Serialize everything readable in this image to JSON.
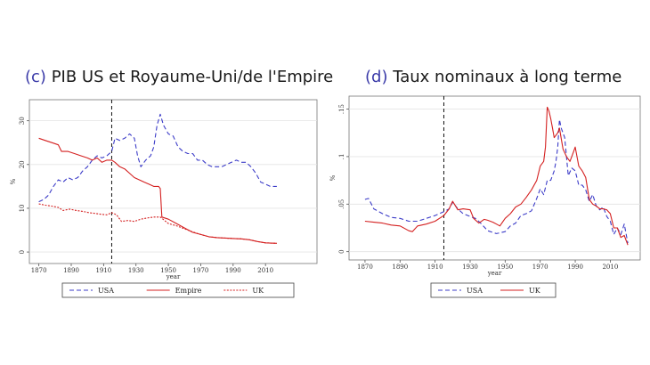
{
  "chart_data": [
    {
      "type": "line",
      "panel_letter": "(c)",
      "title": "PIB US et Royaume-Uni/de l'Empire",
      "xlabel": "year",
      "ylabel": "%",
      "xlim": [
        1868,
        2022
      ],
      "ylim": [
        -1,
        34
      ],
      "xticks": [
        1870,
        1890,
        1910,
        1930,
        1950,
        1970,
        1990,
        2010
      ],
      "yticks": [
        0,
        10,
        20,
        30
      ],
      "ytick_labels": [
        "0",
        "10",
        "20",
        "30"
      ],
      "vline_x": 1915,
      "grid": "horizontal",
      "legend_position": "bottom",
      "series": [
        {
          "name": "USA",
          "color": "#3c3cc8",
          "dash": "dashed",
          "points": [
            [
              1870,
              11.5
            ],
            [
              1873,
              12
            ],
            [
              1876,
              13
            ],
            [
              1879,
              15
            ],
            [
              1882,
              16.5
            ],
            [
              1885,
              16
            ],
            [
              1888,
              17
            ],
            [
              1891,
              16.5
            ],
            [
              1894,
              17
            ],
            [
              1897,
              18.5
            ],
            [
              1900,
              19.5
            ],
            [
              1903,
              21
            ],
            [
              1906,
              22
            ],
            [
              1909,
              21.5
            ],
            [
              1912,
              22
            ],
            [
              1915,
              23
            ],
            [
              1917,
              26
            ],
            [
              1920,
              25.5
            ],
            [
              1923,
              26
            ],
            [
              1926,
              27
            ],
            [
              1929,
              26
            ],
            [
              1931,
              22
            ],
            [
              1933,
              19.5
            ],
            [
              1936,
              21
            ],
            [
              1939,
              22
            ],
            [
              1941,
              24
            ],
            [
              1943,
              29
            ],
            [
              1945,
              31.5
            ],
            [
              1947,
              29
            ],
            [
              1950,
              27
            ],
            [
              1953,
              26.5
            ],
            [
              1956,
              24
            ],
            [
              1959,
              23
            ],
            [
              1962,
              22.5
            ],
            [
              1965,
              22.5
            ],
            [
              1968,
              21
            ],
            [
              1971,
              21
            ],
            [
              1974,
              20
            ],
            [
              1977,
              19.5
            ],
            [
              1980,
              19.5
            ],
            [
              1983,
              19.5
            ],
            [
              1986,
              20
            ],
            [
              1989,
              20.5
            ],
            [
              1992,
              21
            ],
            [
              1995,
              20.5
            ],
            [
              1998,
              20.5
            ],
            [
              2001,
              19.5
            ],
            [
              2004,
              18
            ],
            [
              2007,
              16
            ],
            [
              2010,
              15.5
            ],
            [
              2013,
              15
            ],
            [
              2017,
              15
            ]
          ]
        },
        {
          "name": "Empire",
          "color": "#d42020",
          "dash": "solid",
          "points": [
            [
              1870,
              26
            ],
            [
              1874,
              25.5
            ],
            [
              1878,
              25
            ],
            [
              1882,
              24.5
            ],
            [
              1884,
              23
            ],
            [
              1888,
              23
            ],
            [
              1892,
              22.5
            ],
            [
              1896,
              22
            ],
            [
              1900,
              21.5
            ],
            [
              1903,
              21
            ],
            [
              1906,
              21.5
            ],
            [
              1909,
              20.5
            ],
            [
              1912,
              21
            ],
            [
              1915,
              21
            ],
            [
              1917,
              20.5
            ],
            [
              1920,
              19.5
            ],
            [
              1923,
              19
            ],
            [
              1926,
              18
            ],
            [
              1929,
              17
            ],
            [
              1932,
              16.5
            ],
            [
              1935,
              16
            ],
            [
              1938,
              15.5
            ],
            [
              1941,
              15
            ],
            [
              1944,
              15
            ],
            [
              1945,
              14.5
            ],
            [
              1946,
              8
            ],
            [
              1950,
              7.5
            ],
            [
              1955,
              6.5
            ],
            [
              1960,
              5.5
            ],
            [
              1965,
              4.5
            ],
            [
              1970,
              4
            ],
            [
              1975,
              3.5
            ],
            [
              1980,
              3.3
            ],
            [
              1985,
              3.2
            ],
            [
              1990,
              3.1
            ],
            [
              1995,
              3
            ],
            [
              2000,
              2.8
            ],
            [
              2005,
              2.4
            ],
            [
              2010,
              2.1
            ],
            [
              2017,
              2
            ]
          ]
        },
        {
          "name": "UK",
          "color": "#d42020",
          "dash": "dotted",
          "points": [
            [
              1870,
              11
            ],
            [
              1874,
              10.7
            ],
            [
              1878,
              10.5
            ],
            [
              1882,
              10.2
            ],
            [
              1885,
              9.5
            ],
            [
              1889,
              9.8
            ],
            [
              1893,
              9.5
            ],
            [
              1897,
              9.3
            ],
            [
              1901,
              9
            ],
            [
              1905,
              8.8
            ],
            [
              1909,
              8.6
            ],
            [
              1912,
              8.5
            ],
            [
              1915,
              9
            ],
            [
              1918,
              8.5
            ],
            [
              1921,
              7
            ],
            [
              1925,
              7.2
            ],
            [
              1929,
              7
            ],
            [
              1933,
              7.5
            ],
            [
              1937,
              7.8
            ],
            [
              1941,
              8
            ],
            [
              1945,
              8
            ],
            [
              1950,
              6.5
            ],
            [
              1955,
              6
            ],
            [
              1960,
              5.3
            ],
            [
              1965,
              4.6
            ],
            [
              1970,
              4
            ],
            [
              1975,
              3.5
            ],
            [
              1980,
              3.3
            ],
            [
              1985,
              3.2
            ],
            [
              1990,
              3.1
            ],
            [
              1995,
              3
            ],
            [
              2000,
              2.8
            ],
            [
              2005,
              2.4
            ],
            [
              2010,
              2.1
            ],
            [
              2017,
              2
            ]
          ]
        }
      ]
    },
    {
      "type": "line",
      "panel_letter": "(d)",
      "title": "Taux nominaux à long terme",
      "xlabel": "year",
      "ylabel": "%",
      "xlim": [
        1868,
        2022
      ],
      "ylim": [
        -0.005,
        0.158
      ],
      "xticks": [
        1870,
        1890,
        1910,
        1930,
        1950,
        1970,
        1990,
        2010
      ],
      "yticks": [
        0,
        0.05,
        0.1,
        0.15
      ],
      "ytick_labels": [
        "0",
        ".05",
        ".1",
        ".15"
      ],
      "vline_x": 1915,
      "grid": "horizontal",
      "legend_position": "bottom",
      "series": [
        {
          "name": "USA",
          "color": "#3c3cc8",
          "dash": "dashed",
          "points": [
            [
              1870,
              0.055
            ],
            [
              1872,
              0.056
            ],
            [
              1875,
              0.045
            ],
            [
              1880,
              0.04
            ],
            [
              1885,
              0.036
            ],
            [
              1890,
              0.035
            ],
            [
              1895,
              0.032
            ],
            [
              1900,
              0.032
            ],
            [
              1905,
              0.035
            ],
            [
              1910,
              0.038
            ],
            [
              1915,
              0.042
            ],
            [
              1918,
              0.045
            ],
            [
              1920,
              0.052
            ],
            [
              1923,
              0.045
            ],
            [
              1926,
              0.04
            ],
            [
              1930,
              0.037
            ],
            [
              1933,
              0.035
            ],
            [
              1936,
              0.03
            ],
            [
              1940,
              0.022
            ],
            [
              1945,
              0.019
            ],
            [
              1950,
              0.021
            ],
            [
              1953,
              0.027
            ],
            [
              1956,
              0.03
            ],
            [
              1959,
              0.038
            ],
            [
              1962,
              0.04
            ],
            [
              1965,
              0.043
            ],
            [
              1968,
              0.056
            ],
            [
              1970,
              0.066
            ],
            [
              1972,
              0.06
            ],
            [
              1974,
              0.075
            ],
            [
              1976,
              0.075
            ],
            [
              1978,
              0.085
            ],
            [
              1979,
              0.095
            ],
            [
              1980,
              0.11
            ],
            [
              1981,
              0.139
            ],
            [
              1982,
              0.13
            ],
            [
              1984,
              0.12
            ],
            [
              1986,
              0.08
            ],
            [
              1988,
              0.088
            ],
            [
              1990,
              0.085
            ],
            [
              1992,
              0.07
            ],
            [
              1994,
              0.07
            ],
            [
              1996,
              0.065
            ],
            [
              1998,
              0.053
            ],
            [
              2000,
              0.06
            ],
            [
              2002,
              0.048
            ],
            [
              2004,
              0.044
            ],
            [
              2006,
              0.047
            ],
            [
              2008,
              0.037
            ],
            [
              2010,
              0.032
            ],
            [
              2012,
              0.018
            ],
            [
              2014,
              0.025
            ],
            [
              2016,
              0.018
            ],
            [
              2018,
              0.029
            ],
            [
              2020,
              0.009
            ]
          ]
        },
        {
          "name": "UK",
          "color": "#d42020",
          "dash": "solid",
          "points": [
            [
              1870,
              0.032
            ],
            [
              1875,
              0.031
            ],
            [
              1880,
              0.03
            ],
            [
              1885,
              0.028
            ],
            [
              1890,
              0.027
            ],
            [
              1895,
              0.022
            ],
            [
              1897,
              0.021
            ],
            [
              1900,
              0.027
            ],
            [
              1905,
              0.029
            ],
            [
              1910,
              0.032
            ],
            [
              1915,
              0.038
            ],
            [
              1918,
              0.045
            ],
            [
              1920,
              0.053
            ],
            [
              1923,
              0.044
            ],
            [
              1926,
              0.045
            ],
            [
              1930,
              0.044
            ],
            [
              1932,
              0.035
            ],
            [
              1935,
              0.03
            ],
            [
              1938,
              0.034
            ],
            [
              1940,
              0.033
            ],
            [
              1943,
              0.031
            ],
            [
              1945,
              0.029
            ],
            [
              1947,
              0.027
            ],
            [
              1950,
              0.035
            ],
            [
              1953,
              0.04
            ],
            [
              1956,
              0.047
            ],
            [
              1959,
              0.05
            ],
            [
              1962,
              0.057
            ],
            [
              1965,
              0.065
            ],
            [
              1968,
              0.075
            ],
            [
              1970,
              0.09
            ],
            [
              1972,
              0.095
            ],
            [
              1973,
              0.11
            ],
            [
              1974,
              0.152
            ],
            [
              1975,
              0.148
            ],
            [
              1976,
              0.14
            ],
            [
              1977,
              0.13
            ],
            [
              1978,
              0.12
            ],
            [
              1980,
              0.125
            ],
            [
              1981,
              0.13
            ],
            [
              1983,
              0.108
            ],
            [
              1985,
              0.1
            ],
            [
              1987,
              0.095
            ],
            [
              1989,
              0.105
            ],
            [
              1990,
              0.11
            ],
            [
              1992,
              0.09
            ],
            [
              1994,
              0.085
            ],
            [
              1996,
              0.078
            ],
            [
              1998,
              0.055
            ],
            [
              2000,
              0.05
            ],
            [
              2002,
              0.048
            ],
            [
              2004,
              0.045
            ],
            [
              2006,
              0.045
            ],
            [
              2008,
              0.044
            ],
            [
              2010,
              0.04
            ],
            [
              2012,
              0.025
            ],
            [
              2014,
              0.025
            ],
            [
              2016,
              0.015
            ],
            [
              2018,
              0.017
            ],
            [
              2020,
              0.007
            ]
          ]
        }
      ]
    }
  ]
}
